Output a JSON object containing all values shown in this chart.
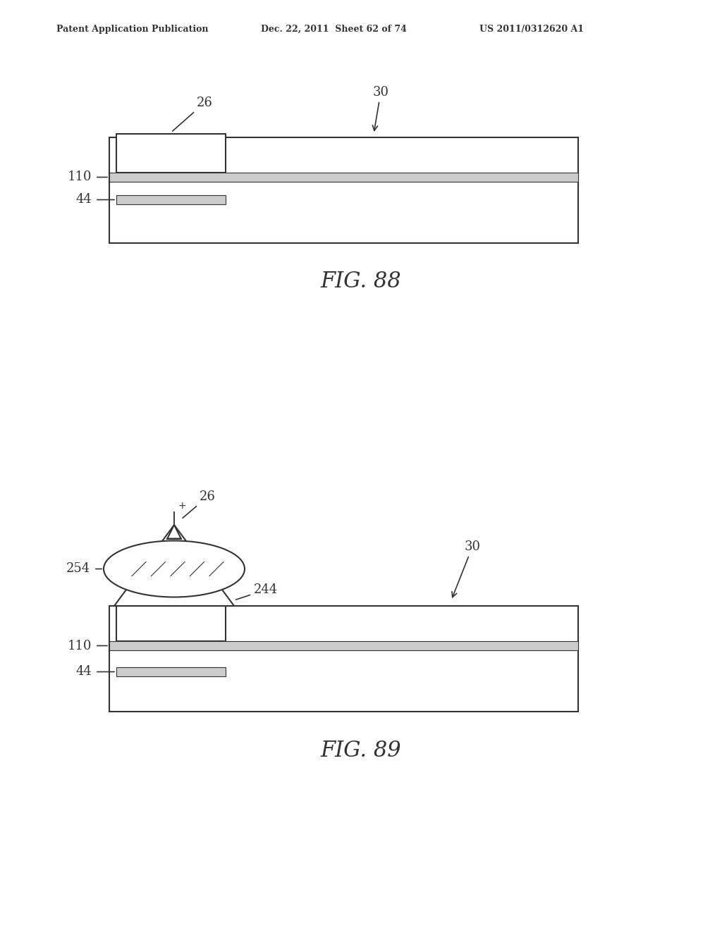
{
  "bg_color": "#ffffff",
  "header_left": "Patent Application Publication",
  "header_mid": "Dec. 22, 2011  Sheet 62 of 74",
  "header_right": "US 2011/0312620 A1",
  "fig88_caption": "FIG. 88",
  "fig89_caption": "FIG. 89",
  "line_color": "#333333",
  "label_color": "#333333"
}
